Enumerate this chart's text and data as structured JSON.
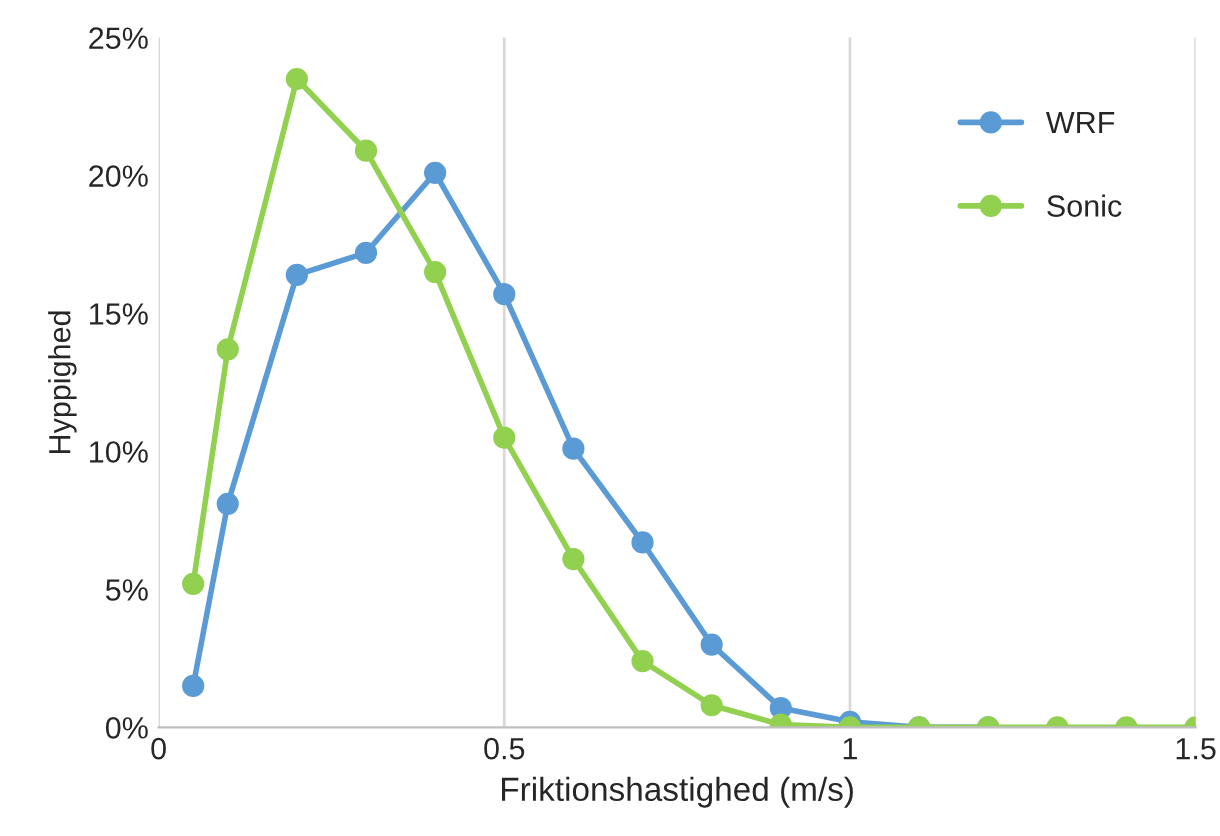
{
  "chart_data": {
    "type": "line",
    "xlabel": "Friktionshastighed (m/s)",
    "ylabel": "Hyppighed",
    "x": [
      0.05,
      0.1,
      0.2,
      0.3,
      0.4,
      0.5,
      0.6,
      0.7,
      0.8,
      0.9,
      1.0,
      1.1,
      1.2,
      1.3,
      1.4,
      1.5
    ],
    "series": [
      {
        "name": "WRF",
        "color": "#5b9bd5",
        "values": [
          1.5,
          8.1,
          16.4,
          17.2,
          20.1,
          15.7,
          10.1,
          6.7,
          3.0,
          0.7,
          0.2,
          0,
          0,
          null,
          null,
          null
        ]
      },
      {
        "name": "Sonic",
        "color": "#92d050",
        "values": [
          5.2,
          13.7,
          23.5,
          20.9,
          16.5,
          10.5,
          6.1,
          2.4,
          0.8,
          0.1,
          0,
          0,
          0,
          0,
          0,
          0
        ]
      }
    ],
    "xlim": [
      0,
      1.5
    ],
    "xticks": [
      0,
      0.5,
      1,
      1.5
    ],
    "ylim": [
      0,
      25
    ],
    "yticks": [
      {
        "value": 0,
        "label": "0%"
      },
      {
        "value": 5,
        "label": "5%"
      },
      {
        "value": 10,
        "label": "10%"
      },
      {
        "value": 15,
        "label": "15%"
      },
      {
        "value": 20,
        "label": "20%"
      },
      {
        "value": 25,
        "label": "25%"
      }
    ],
    "grid": "x",
    "legend": "top right",
    "marker": "circle",
    "line_style": "solid"
  }
}
